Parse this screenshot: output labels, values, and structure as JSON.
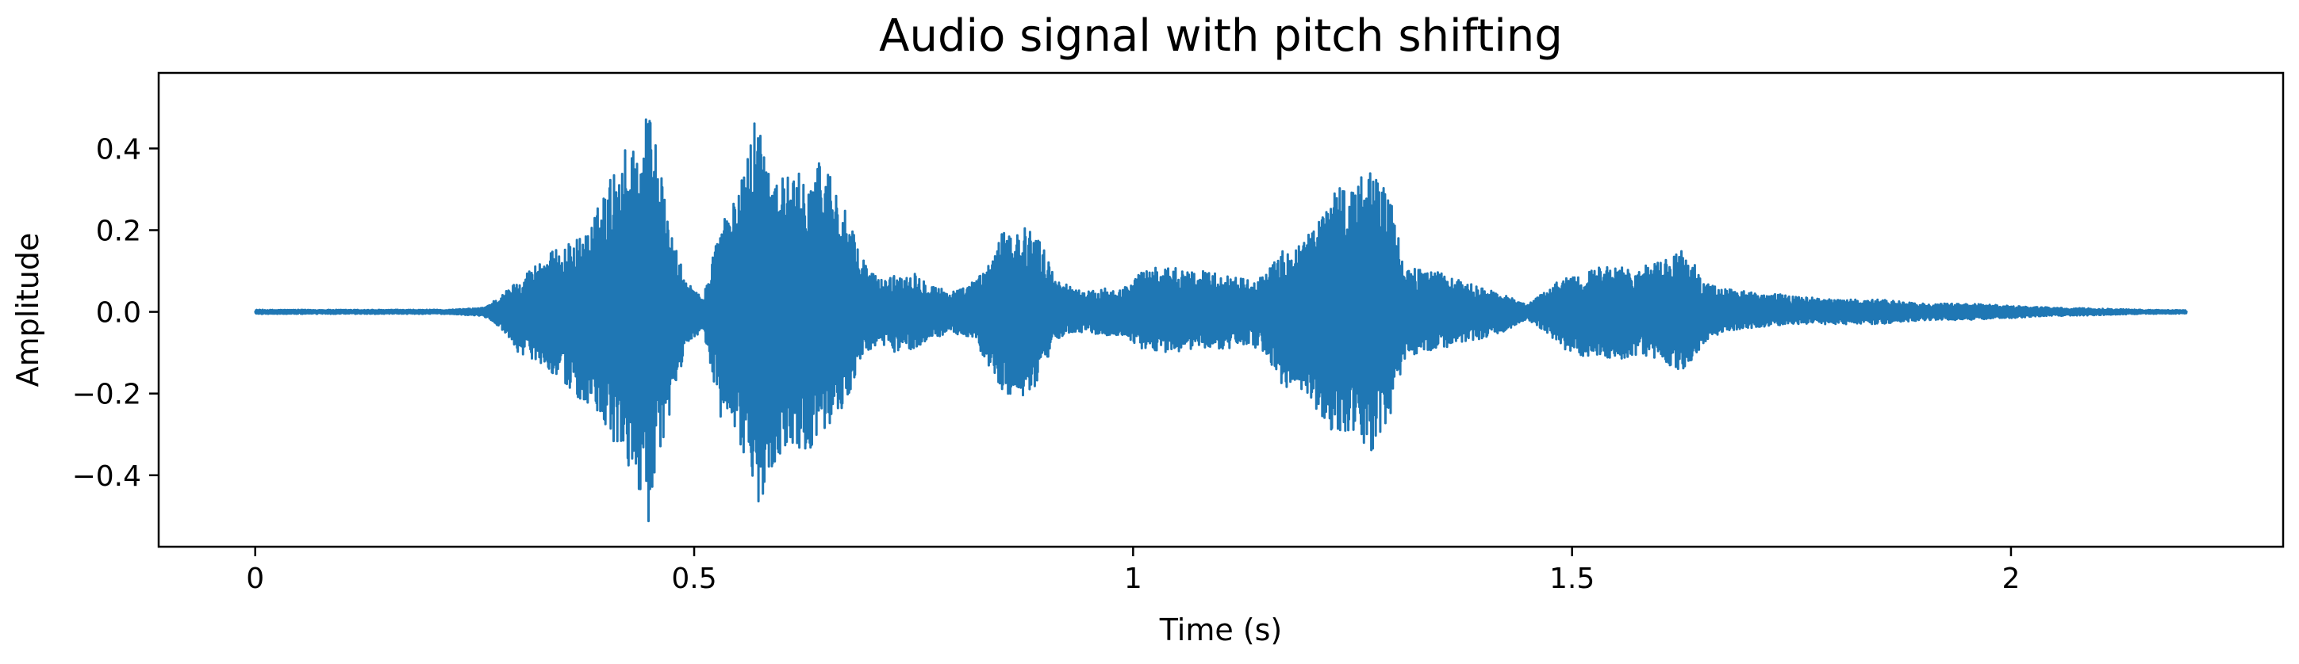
{
  "chart_data": {
    "type": "line",
    "title": "Audio signal with pitch shifting",
    "xlabel": "Time (s)",
    "ylabel": "Amplitude",
    "xlim": [
      -0.11,
      2.31
    ],
    "ylim": [
      -0.575,
      0.585
    ],
    "xticks": [
      {
        "value": 0,
        "label": "0"
      },
      {
        "value": 0.5,
        "label": "0.5"
      },
      {
        "value": 1,
        "label": "1"
      },
      {
        "value": 1.5,
        "label": "1.5"
      },
      {
        "value": 2,
        "label": "2"
      }
    ],
    "yticks": [
      {
        "value": 0.4,
        "label": "0.4"
      },
      {
        "value": 0.2,
        "label": "0.2"
      },
      {
        "value": 0.0,
        "label": "0.0"
      },
      {
        "value": -0.2,
        "label": "−0.2"
      },
      {
        "value": -0.4,
        "label": "−0.4"
      }
    ],
    "grid": false,
    "color": "#1f77b4",
    "series": [
      {
        "x_start": 0.0,
        "x_end": 2.2,
        "envelope": {
          "time": [
            0.0,
            0.1,
            0.22,
            0.26,
            0.28,
            0.3,
            0.33,
            0.36,
            0.38,
            0.4,
            0.42,
            0.44,
            0.45,
            0.47,
            0.49,
            0.51,
            0.53,
            0.55,
            0.57,
            0.59,
            0.61,
            0.63,
            0.65,
            0.67,
            0.69,
            0.71,
            0.73,
            0.75,
            0.77,
            0.79,
            0.81,
            0.83,
            0.85,
            0.87,
            0.89,
            0.91,
            0.93,
            0.95,
            0.97,
            0.99,
            1.01,
            1.03,
            1.05,
            1.07,
            1.09,
            1.11,
            1.13,
            1.15,
            1.17,
            1.19,
            1.21,
            1.23,
            1.25,
            1.27,
            1.29,
            1.31,
            1.33,
            1.37,
            1.41,
            1.45,
            1.47,
            1.49,
            1.51,
            1.53,
            1.55,
            1.57,
            1.59,
            1.61,
            1.63,
            1.65,
            1.67,
            1.7,
            1.75,
            1.8,
            1.85,
            1.9,
            1.95,
            2.0,
            2.05,
            2.1,
            2.15,
            2.2
          ],
          "max": [
            0.005,
            0.005,
            0.005,
            0.01,
            0.04,
            0.08,
            0.14,
            0.17,
            0.2,
            0.31,
            0.4,
            0.44,
            0.53,
            0.22,
            0.08,
            0.03,
            0.23,
            0.28,
            0.5,
            0.35,
            0.33,
            0.35,
            0.38,
            0.26,
            0.14,
            0.08,
            0.09,
            0.1,
            0.07,
            0.05,
            0.06,
            0.1,
            0.19,
            0.21,
            0.2,
            0.09,
            0.06,
            0.05,
            0.06,
            0.06,
            0.1,
            0.11,
            0.11,
            0.1,
            0.1,
            0.09,
            0.08,
            0.09,
            0.15,
            0.17,
            0.22,
            0.32,
            0.31,
            0.35,
            0.32,
            0.1,
            0.11,
            0.08,
            0.05,
            0.02,
            0.05,
            0.09,
            0.09,
            0.11,
            0.12,
            0.1,
            0.12,
            0.13,
            0.16,
            0.07,
            0.06,
            0.05,
            0.04,
            0.03,
            0.03,
            0.02,
            0.02,
            0.015,
            0.01,
            0.008,
            0.005,
            0.004
          ],
          "min": [
            -0.005,
            -0.005,
            -0.005,
            -0.01,
            -0.04,
            -0.1,
            -0.13,
            -0.2,
            -0.23,
            -0.31,
            -0.36,
            -0.45,
            -0.53,
            -0.28,
            -0.09,
            -0.04,
            -0.27,
            -0.3,
            -0.5,
            -0.37,
            -0.33,
            -0.34,
            -0.28,
            -0.25,
            -0.11,
            -0.08,
            -0.1,
            -0.09,
            -0.07,
            -0.05,
            -0.06,
            -0.11,
            -0.2,
            -0.21,
            -0.2,
            -0.07,
            -0.05,
            -0.05,
            -0.06,
            -0.06,
            -0.09,
            -0.1,
            -0.1,
            -0.09,
            -0.09,
            -0.09,
            -0.08,
            -0.1,
            -0.18,
            -0.2,
            -0.25,
            -0.31,
            -0.3,
            -0.35,
            -0.3,
            -0.11,
            -0.1,
            -0.08,
            -0.06,
            -0.02,
            -0.05,
            -0.09,
            -0.11,
            -0.11,
            -0.12,
            -0.11,
            -0.11,
            -0.13,
            -0.15,
            -0.08,
            -0.05,
            -0.04,
            -0.03,
            -0.03,
            -0.03,
            -0.02,
            -0.02,
            -0.015,
            -0.01,
            -0.008,
            -0.005,
            -0.004
          ]
        }
      }
    ]
  }
}
